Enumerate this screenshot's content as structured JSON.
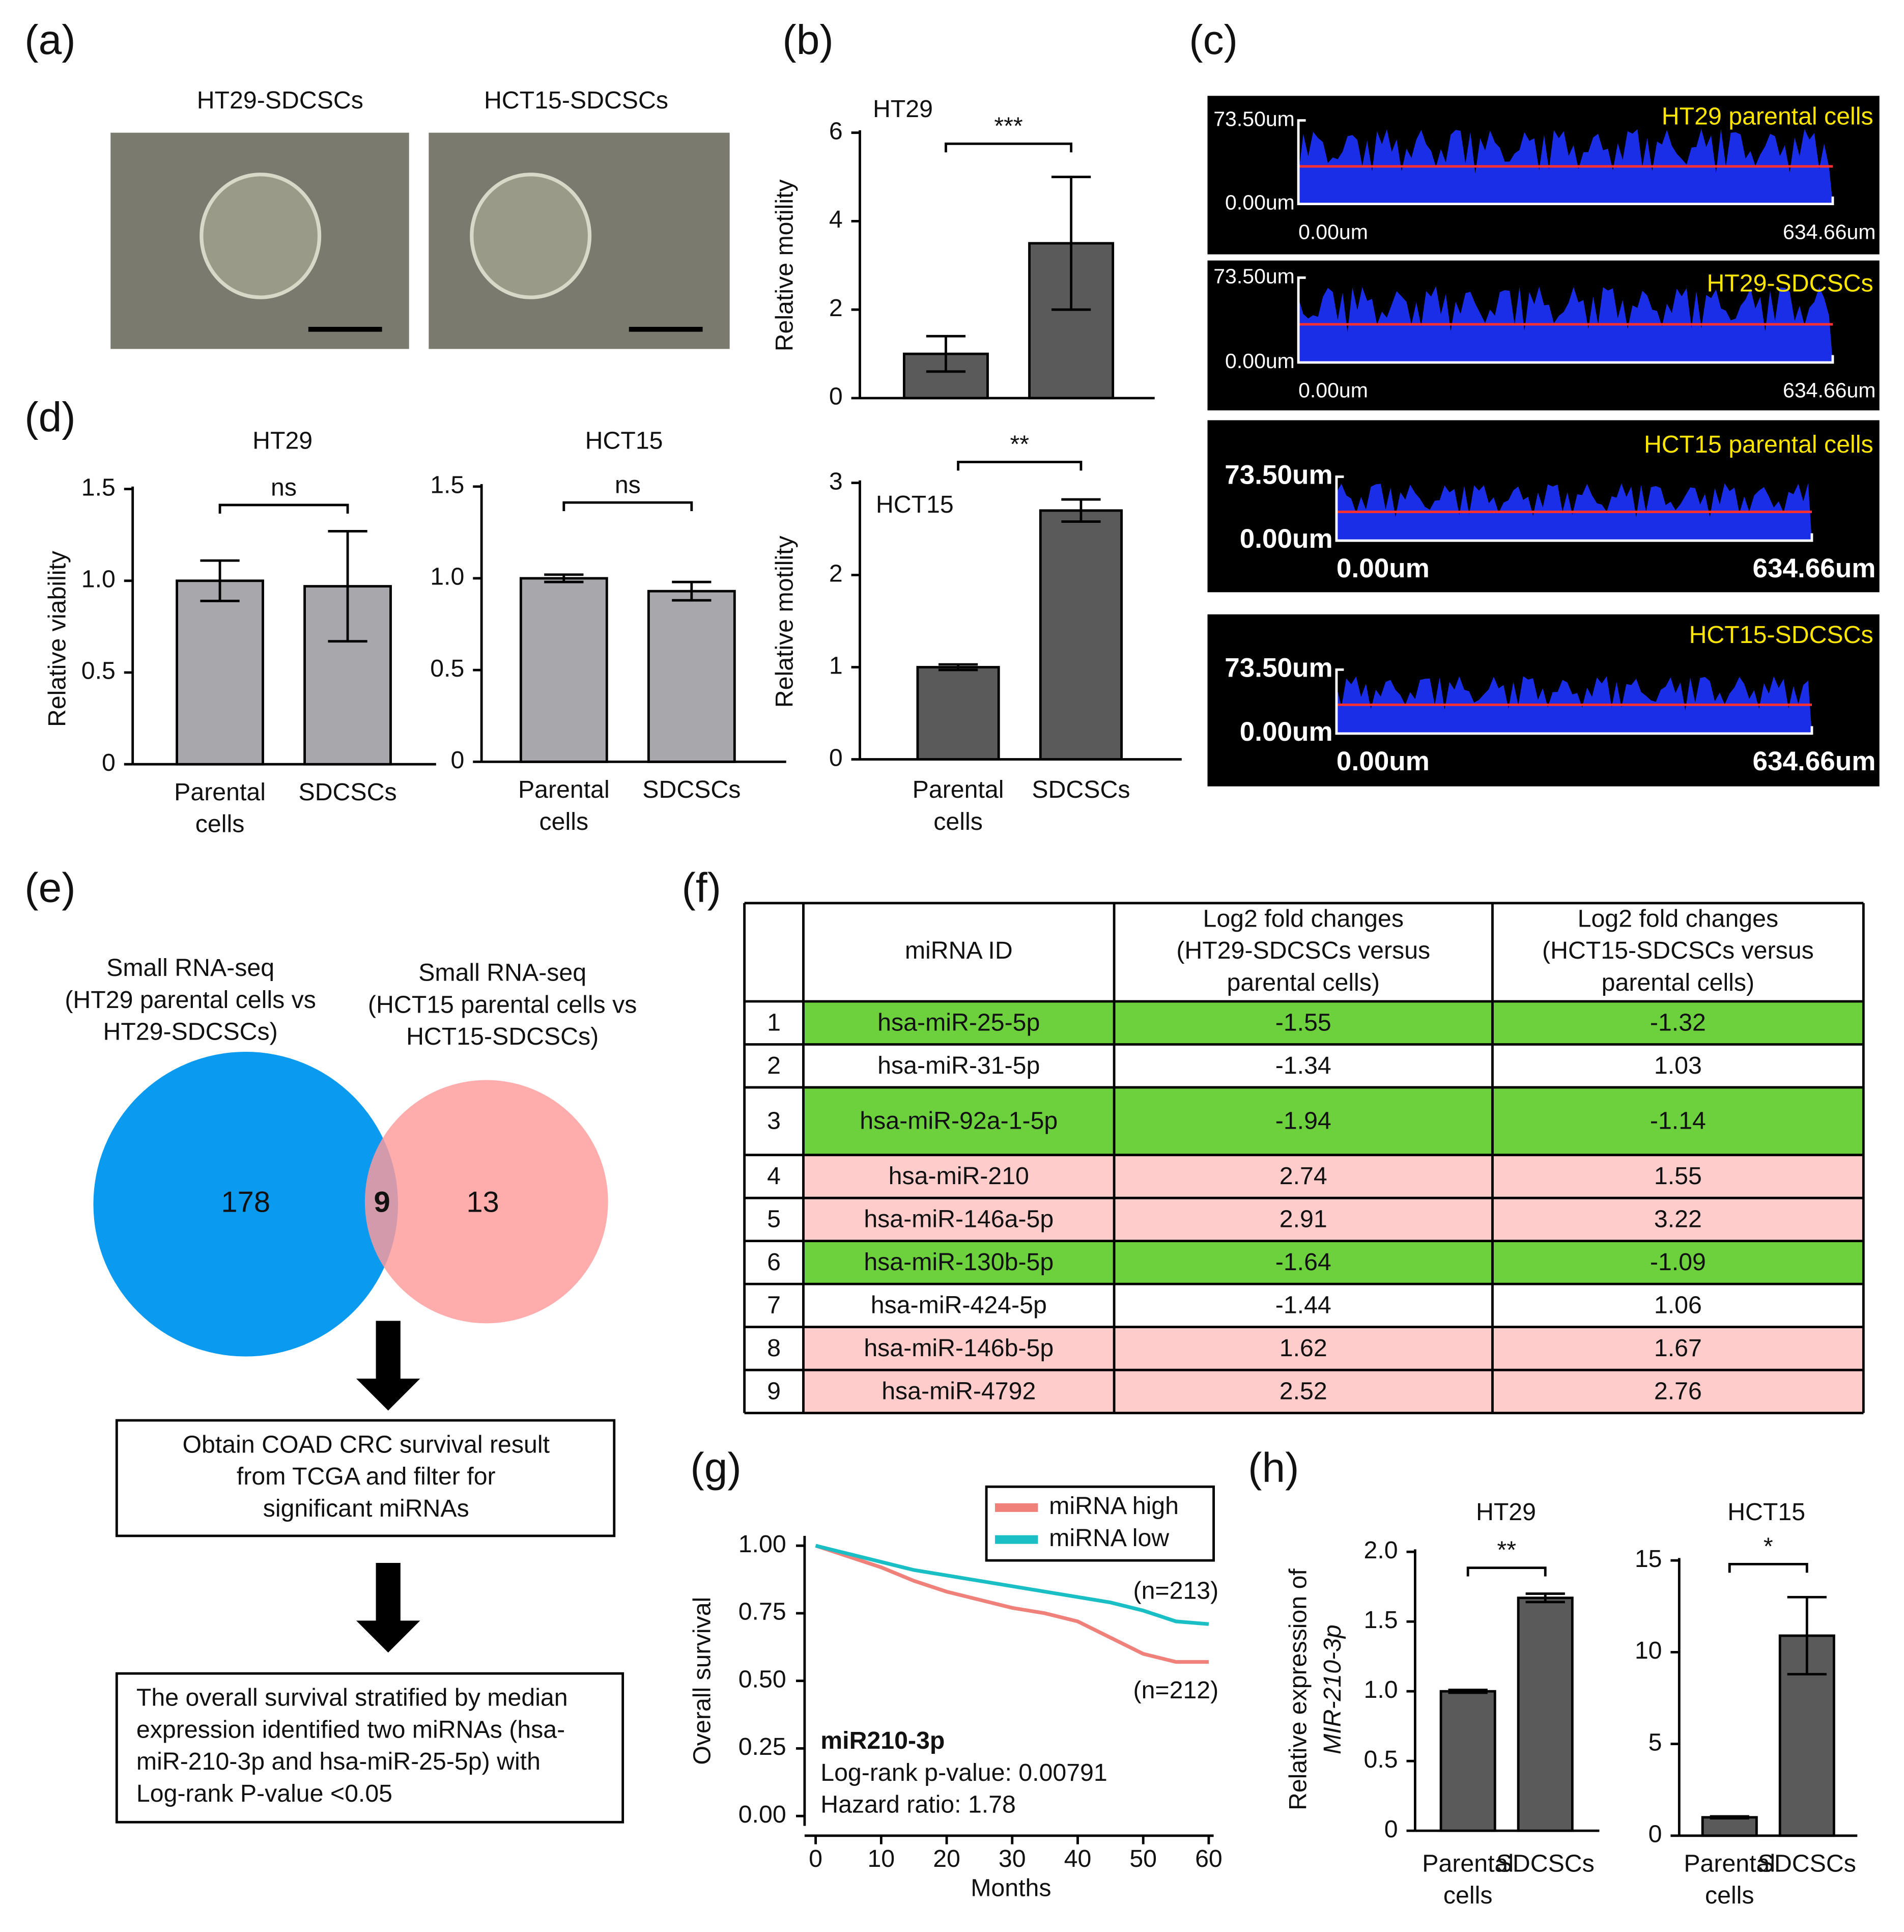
{
  "panel_labels": [
    "(a)",
    "(b)",
    "(c)",
    "(d)",
    "(e)",
    "(f)",
    "(g)",
    "(h)"
  ],
  "panel_a": {
    "captions": [
      "HT29-SDCSCs",
      "HCT15-SDCSCs"
    ]
  },
  "panel_c": {
    "images": [
      {
        "label": "HT29 parental cells",
        "y_top": "73.50um",
        "y_bottom": "0.00um",
        "x_left": "0.00um",
        "x_right": "634.66um"
      },
      {
        "label": "HT29-SDCSCs",
        "y_top": "73.50um",
        "y_bottom": "0.00um",
        "x_left": "0.00um",
        "x_right": "634.66um"
      },
      {
        "label": "HCT15 parental cells",
        "y_top": "73.50um",
        "y_bottom": "0.00um",
        "x_left": "0.00um",
        "x_right": "634.66um"
      },
      {
        "label": "HCT15-SDCSCs",
        "y_top": "73.50um",
        "y_bottom": "0.00um",
        "x_left": "0.00um",
        "x_right": "634.66um"
      }
    ]
  },
  "venn": {
    "left_title": [
      "Small RNA-seq",
      "(HT29 parental cells vs",
      "HT29-SDCSCs)"
    ],
    "right_title": [
      "Small RNA-seq",
      "(HCT15 parental cells vs",
      "HCT15-SDCSCs)"
    ],
    "left_only": 178,
    "both": 9,
    "right_only": 13,
    "left_color": "#0a9af0",
    "right_color": "#ff9a9a"
  },
  "flowchart": [
    [
      "Obtain COAD CRC survival result",
      "from TCGA and filter for",
      "significant miRNAs"
    ],
    [
      "The overall survival stratified by median",
      "expression identified two miRNAs (hsa-",
      "miR-210-3p and hsa-miR-25-5p) with",
      "Log-rank P-value <0.05"
    ]
  ],
  "table": {
    "header": [
      [
        "miRNA ID"
      ],
      [
        "Log2 fold changes",
        "(HT29-SDCSCs versus",
        "parental cells)"
      ],
      [
        "Log2 fold changes",
        "(HCT15-SDCSCs versus",
        "parental cells)"
      ]
    ],
    "rows": [
      [
        1,
        "hsa-miR-25-5p",
        -1.55,
        -1.32
      ],
      [
        2,
        "hsa-miR-31-5p",
        -1.34,
        1.03
      ],
      [
        3,
        "hsa-miR-92a-1-5p",
        -1.94,
        -1.14
      ],
      [
        4,
        "hsa-miR-210",
        2.74,
        1.55
      ],
      [
        5,
        "hsa-miR-146a-5p",
        2.91,
        3.22
      ],
      [
        6,
        "hsa-miR-130b-5p",
        -1.64,
        -1.09
      ],
      [
        7,
        "hsa-miR-424-5p",
        -1.44,
        1.06
      ],
      [
        8,
        "hsa-miR-146b-5p",
        1.62,
        1.67
      ],
      [
        9,
        "hsa-miR-4792",
        2.52,
        2.76
      ]
    ],
    "row_colors": [
      "#6dd13e",
      "#ffffff",
      "#6dd13e",
      "#ffcccc",
      "#ffcccc",
      "#6dd13e",
      "#ffffff",
      "#ffcccc",
      "#ffcccc"
    ]
  },
  "chart_data": [
    {
      "type": "bar",
      "title": "HT29",
      "ylabel": [
        "Relative motility"
      ],
      "values": [
        1.0,
        3.5
      ],
      "errors": [
        0.4,
        1.5
      ],
      "ylim": [
        0,
        6
      ],
      "yticks": [
        0,
        2,
        4,
        6
      ],
      "significance": "***",
      "color": "#5a5a5a"
    },
    {
      "type": "bar",
      "title": "HCT15",
      "ylabel": [
        "Relative motility"
      ],
      "categories": [
        [
          "Parental",
          "cells"
        ],
        [
          "SDCSCs"
        ]
      ],
      "values": [
        1.0,
        2.7
      ],
      "errors": [
        0.03,
        0.12
      ],
      "ylim": [
        0,
        3
      ],
      "yticks": [
        0,
        1,
        2,
        3
      ],
      "significance": "**",
      "color": "#5a5a5a"
    },
    {
      "type": "bar",
      "title": "HT29",
      "ylabel": [
        "Relative viability"
      ],
      "categories": [
        [
          "Parental",
          "cells"
        ],
        [
          "SDCSCs"
        ]
      ],
      "values": [
        1.0,
        0.97
      ],
      "errors": [
        0.11,
        0.3
      ],
      "ylim": [
        0,
        1.5
      ],
      "yticks": [
        0,
        0.5,
        {
          "value": 1,
          "label": "1.0"
        },
        1.5
      ],
      "significance": "ns",
      "color": "#a7a7ac"
    },
    {
      "type": "bar",
      "title": "HCT15",
      "categories": [
        [
          "Parental",
          "cells"
        ],
        [
          "SDCSCs"
        ]
      ],
      "values": [
        1.0,
        0.93
      ],
      "errors": [
        0.02,
        0.05
      ],
      "ylim": [
        0,
        1.5
      ],
      "yticks": [
        0,
        0.5,
        {
          "value": 1,
          "label": "1.0"
        },
        1.5
      ],
      "significance": "ns",
      "color": "#a7a7ac"
    },
    {
      "type": "line",
      "ylabel": "Overall survival",
      "xlabel": "Months",
      "x": [
        0,
        5,
        10,
        15,
        20,
        25,
        30,
        35,
        40,
        45,
        50,
        55,
        60
      ],
      "series": [
        {
          "name": "miRNA high",
          "color": "#f0807a",
          "values": [
            1.0,
            0.96,
            0.92,
            0.87,
            0.83,
            0.8,
            0.77,
            0.75,
            0.72,
            0.66,
            0.6,
            0.57,
            0.57
          ]
        },
        {
          "name": "miRNA low",
          "color": "#19bfc4",
          "values": [
            1.0,
            0.97,
            0.94,
            0.91,
            0.89,
            0.87,
            0.85,
            0.83,
            0.81,
            0.79,
            0.76,
            0.72,
            0.71
          ]
        }
      ],
      "xlim": [
        0,
        60
      ],
      "xticks": [
        0,
        10,
        20,
        30,
        40,
        50,
        60
      ],
      "ylim": [
        0,
        1
      ],
      "yticks": [
        {
          "value": 0,
          "label": "0.00"
        },
        0.25,
        {
          "value": 0.5,
          "label": "0.50"
        },
        0.75,
        {
          "value": 1,
          "label": "1.00"
        }
      ],
      "annotations": [
        "(n=213)",
        "(n=212)"
      ],
      "stats": [
        "miR210-3p",
        "Log-rank p-value: 0.00791",
        "Hazard ratio: 1.78"
      ],
      "legend": "upper right"
    },
    {
      "type": "bar",
      "title": "HT29",
      "ylabel": [
        "Relative expression of",
        "MIR-210-3p"
      ],
      "categories": [
        [
          "Parental",
          "cells"
        ],
        [
          "SDCSCs"
        ]
      ],
      "values": [
        1.0,
        1.67
      ],
      "errors": [
        0.01,
        0.03
      ],
      "ylim": [
        0,
        2
      ],
      "yticks": [
        0,
        0.5,
        {
          "value": 1,
          "label": "1.0"
        },
        1.5,
        {
          "value": 2,
          "label": "2.0"
        }
      ],
      "significance": "**",
      "color": "#5a5a5a"
    },
    {
      "type": "bar",
      "title": "HCT15",
      "categories": [
        [
          "Parental",
          "cells"
        ],
        [
          "SDCSCs"
        ]
      ],
      "values": [
        1.0,
        10.9
      ],
      "errors": [
        0.05,
        2.1
      ],
      "ylim": [
        0,
        15
      ],
      "yticks": [
        0,
        5,
        10,
        15
      ],
      "significance": "*",
      "color": "#5a5a5a"
    }
  ]
}
